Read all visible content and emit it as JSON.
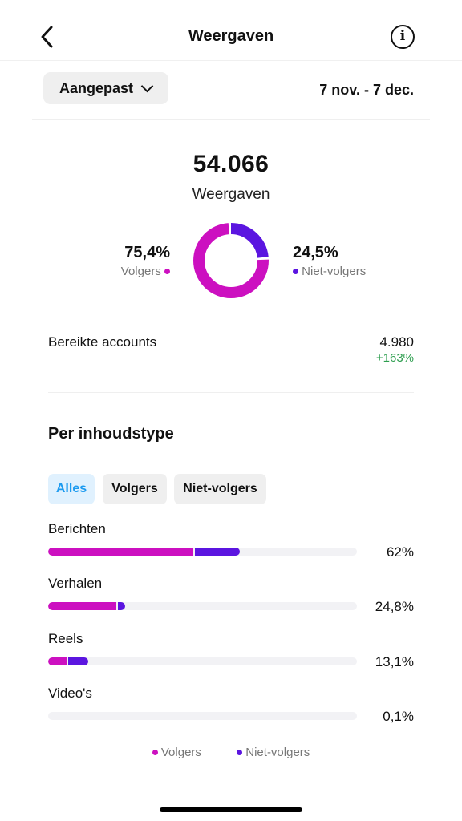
{
  "header": {
    "title": "Weergaven"
  },
  "filters": {
    "range_label": "Aangepast",
    "date_range": "7 nov. - 7 dec."
  },
  "summary": {
    "total": "54.066",
    "total_label": "Weergaven",
    "followers_pct": "75,4%",
    "followers_label": "Volgers",
    "nonfollowers_pct": "24,5%",
    "nonfollowers_label": "Niet-volgers",
    "followers_fraction": 0.754,
    "nonfollowers_fraction": 0.245
  },
  "reach": {
    "label": "Bereikte accounts",
    "value": "4.980",
    "change": "+163%"
  },
  "content_type": {
    "title": "Per inhoudstype",
    "tabs": [
      {
        "label": "Alles",
        "active": true
      },
      {
        "label": "Volgers",
        "active": false
      },
      {
        "label": "Niet-volgers",
        "active": false
      }
    ],
    "rows": [
      {
        "label": "Berichten",
        "pct_text": "62%",
        "followers": 0.47,
        "nonfollowers": 0.15
      },
      {
        "label": "Verhalen",
        "pct_text": "24,8%",
        "followers": 0.22,
        "nonfollowers": 0.03
      },
      {
        "label": "Reels",
        "pct_text": "13,1%",
        "followers": 0.06,
        "nonfollowers": 0.07
      },
      {
        "label": "Video's",
        "pct_text": "0,1%",
        "followers": 0.0,
        "nonfollowers": 0.0
      }
    ],
    "legend": {
      "followers": "Volgers",
      "nonfollowers": "Niet-volgers"
    }
  },
  "colors": {
    "followers": "#cc10c0",
    "nonfollowers": "#5b15e0",
    "positive": "#2e9e4f",
    "accent": "#1d9bf0"
  },
  "icons": {
    "back": "chevron-left-icon",
    "info": "info-icon",
    "dropdown": "chevron-down-icon"
  }
}
